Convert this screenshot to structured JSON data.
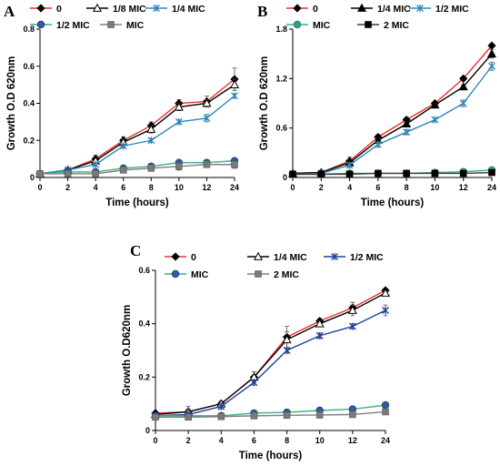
{
  "chart_data": [
    {
      "panel": "A",
      "type": "line",
      "xlabel": "Time (hours)",
      "ylabel": "Growth O.D 620nm",
      "categories": [
        "0",
        "2",
        "4",
        "6",
        "8",
        "10",
        "12",
        "24"
      ],
      "ylim": [
        0,
        0.8
      ],
      "yticks": [
        0,
        0.2,
        0.4,
        0.6,
        0.8
      ],
      "ytick_labels": [
        "0",
        "0.2",
        "0.4",
        "0.6",
        "0.8"
      ],
      "grid": false,
      "legend_position": "top",
      "series": [
        {
          "name": "0",
          "color": "#e8332f",
          "marker": "diamond-black",
          "values": [
            0.02,
            0.04,
            0.1,
            0.2,
            0.28,
            0.4,
            0.41,
            0.53
          ],
          "errors": [
            0.005,
            0.01,
            0.02,
            0.02,
            0.02,
            0.02,
            0.03,
            0.06
          ]
        },
        {
          "name": "1/8 MIC",
          "color": "#000000",
          "marker": "triangle-open",
          "values": [
            0.02,
            0.04,
            0.09,
            0.19,
            0.26,
            0.38,
            0.4,
            0.5
          ],
          "errors": [
            0.005,
            0.01,
            0.01,
            0.02,
            0.02,
            0.02,
            0.02,
            0.03
          ]
        },
        {
          "name": "1/4 MIC",
          "color": "#2e86b8",
          "marker": "star",
          "values": [
            0.02,
            0.04,
            0.07,
            0.17,
            0.2,
            0.3,
            0.32,
            0.44
          ],
          "errors": [
            0.005,
            0.01,
            0.01,
            0.01,
            0.01,
            0.01,
            0.02,
            0.01
          ]
        },
        {
          "name": "1/2 MIC",
          "color": "#3cae8a",
          "marker": "circle-blue",
          "values": [
            0.02,
            0.03,
            0.03,
            0.05,
            0.06,
            0.08,
            0.08,
            0.09
          ],
          "errors": [
            0.005,
            0.005,
            0.005,
            0.01,
            0.01,
            0.01,
            0.01,
            0.01
          ]
        },
        {
          "name": "MIC",
          "color": "#7f7f7f",
          "marker": "square-gray",
          "values": [
            0.02,
            0.02,
            0.02,
            0.04,
            0.05,
            0.06,
            0.07,
            0.07
          ],
          "errors": [
            0.005,
            0.005,
            0.005,
            0.01,
            0.01,
            0.02,
            0.01,
            0.02
          ]
        }
      ]
    },
    {
      "panel": "B",
      "type": "line",
      "xlabel": "Time (hours)",
      "ylabel": "Growth O.D 620nm",
      "categories": [
        "0",
        "2",
        "4",
        "6",
        "8",
        "10",
        "12",
        "24"
      ],
      "ylim": [
        0,
        1.8
      ],
      "yticks": [
        0,
        0.6,
        1.2,
        1.8
      ],
      "ytick_labels": [
        "0",
        "0.6",
        "1.2",
        "1.8"
      ],
      "grid": false,
      "legend_position": "top",
      "series": [
        {
          "name": "0",
          "color": "#e8332f",
          "marker": "diamond-black",
          "values": [
            0.05,
            0.06,
            0.2,
            0.49,
            0.7,
            0.9,
            1.2,
            1.6
          ],
          "errors": [
            0.01,
            0.01,
            0.05,
            0.03,
            0.03,
            0.02,
            0.02,
            0.02
          ]
        },
        {
          "name": "1/4 MIC",
          "color": "#000000",
          "marker": "triangle-filled",
          "values": [
            0.05,
            0.06,
            0.18,
            0.45,
            0.65,
            0.88,
            1.1,
            1.5
          ],
          "errors": [
            0.01,
            0.01,
            0.04,
            0.03,
            0.03,
            0.02,
            0.02,
            0.05
          ]
        },
        {
          "name": "1/2 MIC",
          "color": "#2e86b8",
          "marker": "star",
          "values": [
            0.04,
            0.05,
            0.15,
            0.4,
            0.55,
            0.7,
            0.9,
            1.35
          ],
          "errors": [
            0.01,
            0.01,
            0.03,
            0.03,
            0.03,
            0.02,
            0.04,
            0.05
          ]
        },
        {
          "name": "MIC",
          "color": "#3cae8a",
          "marker": "circle-teal",
          "values": [
            0.04,
            0.04,
            0.05,
            0.05,
            0.05,
            0.06,
            0.07,
            0.09
          ],
          "errors": [
            0.01,
            0.01,
            0.01,
            0.01,
            0.01,
            0.01,
            0.01,
            0.02
          ]
        },
        {
          "name": "2 MIC",
          "color": "#3a3a3a",
          "marker": "square-black",
          "values": [
            0.04,
            0.04,
            0.04,
            0.05,
            0.05,
            0.05,
            0.05,
            0.06
          ],
          "errors": [
            0.01,
            0.01,
            0.01,
            0.01,
            0.01,
            0.01,
            0.01,
            0.01
          ]
        }
      ]
    },
    {
      "panel": "C",
      "type": "line",
      "xlabel": "Time (hours)",
      "ylabel": "Growth O.D620nm",
      "categories": [
        "0",
        "2",
        "4",
        "6",
        "8",
        "10",
        "12",
        "24"
      ],
      "ylim": [
        0,
        0.6
      ],
      "yticks": [
        0,
        0.2,
        0.4,
        0.6
      ],
      "ytick_labels": [
        "0",
        "0.2",
        "0.4",
        "0.6"
      ],
      "grid": false,
      "legend_position": "top",
      "series": [
        {
          "name": "0",
          "color": "#e8332f",
          "marker": "diamond-black",
          "values": [
            0.065,
            0.07,
            0.1,
            0.2,
            0.35,
            0.41,
            0.46,
            0.525
          ],
          "errors": [
            0.005,
            0.01,
            0.01,
            0.02,
            0.04,
            0.01,
            0.02,
            0.005
          ]
        },
        {
          "name": "1/4 MIC",
          "color": "#000000",
          "marker": "triangle-open",
          "values": [
            0.06,
            0.07,
            0.1,
            0.2,
            0.34,
            0.4,
            0.45,
            0.515
          ],
          "errors": [
            0.005,
            0.02,
            0.01,
            0.02,
            0.03,
            0.01,
            0.02,
            0.01
          ]
        },
        {
          "name": "1/2 MIC",
          "color": "#1f3f9a",
          "marker": "star",
          "values": [
            0.055,
            0.06,
            0.09,
            0.18,
            0.3,
            0.355,
            0.39,
            0.45
          ],
          "errors": [
            0.005,
            0.02,
            0.01,
            0.01,
            0.01,
            0.01,
            0.01,
            0.02
          ]
        },
        {
          "name": "MIC",
          "color": "#3cae8a",
          "marker": "circle-blue",
          "values": [
            0.055,
            0.055,
            0.055,
            0.065,
            0.068,
            0.075,
            0.08,
            0.095
          ],
          "errors": [
            0.005,
            0.005,
            0.005,
            0.01,
            0.01,
            0.01,
            0.01,
            0.005
          ]
        },
        {
          "name": "2 MIC",
          "color": "#7f7f7f",
          "marker": "square-gray",
          "values": [
            0.05,
            0.05,
            0.052,
            0.055,
            0.057,
            0.058,
            0.06,
            0.07
          ],
          "errors": [
            0.005,
            0.005,
            0.005,
            0.005,
            0.005,
            0.005,
            0.005,
            0.005
          ]
        }
      ]
    }
  ]
}
